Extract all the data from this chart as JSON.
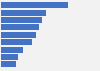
{
  "values": [
    12.6,
    8.5,
    7.8,
    7.2,
    6.5,
    5.8,
    4.2,
    3.2,
    2.8
  ],
  "bar_color": "#4472c4",
  "background_color": "#f2f2f2",
  "xlim": [
    0,
    14.5
  ],
  "grid_color": "#cccccc",
  "bar_height": 0.82
}
